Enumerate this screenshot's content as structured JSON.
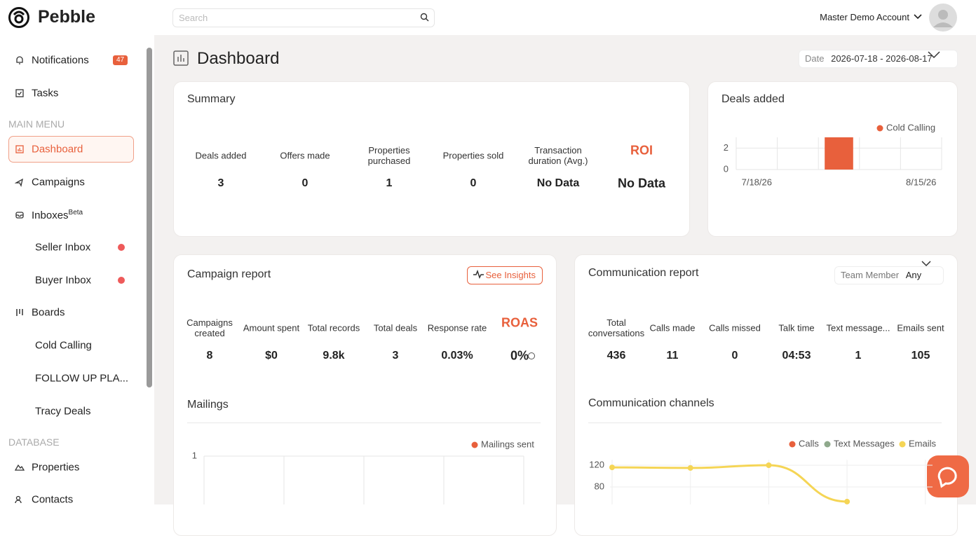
{
  "brand": "Pebble",
  "search_placeholder": "Search",
  "account": "Master Demo Account",
  "sidebar": {
    "notifications": "Notifications",
    "notification_count": 47,
    "tasks": "Tasks",
    "main_menu": "MAIN MENU",
    "dashboard": "Dashboard",
    "campaigns": "Campaigns",
    "inboxes": "Inboxes",
    "beta": "Beta",
    "seller_inbox": "Seller Inbox",
    "buyer_inbox": "Buyer Inbox",
    "boards": "Boards",
    "boards_list": [
      "Cold Calling",
      "FOLLOW UP PLA...",
      "Tracy Deals"
    ],
    "database": "DATABASE",
    "properties": "Properties",
    "contacts": "Contacts"
  },
  "page_title": "Dashboard",
  "date_label": "Date",
  "date_range": "2026-07-18 - 2026-08-17",
  "summary": {
    "title": "Summary",
    "stats": [
      {
        "label": "Deals added",
        "value": 3
      },
      {
        "label": "Offers made",
        "value": 0
      },
      {
        "label": "Properties purchased",
        "value": 1
      },
      {
        "label": "Properties sold",
        "value": 0
      },
      {
        "label": "Transaction duration (Avg.)",
        "value": "No Data"
      }
    ],
    "highlight": {
      "label": "ROI",
      "value": "No Data"
    }
  },
  "deals_chart": {
    "type": "bar",
    "title": "Deals added",
    "categories": [
      "7/18/26",
      null,
      null,
      null,
      "8/15/26"
    ],
    "series": [
      {
        "name": "Cold Calling",
        "color": "#e8603c",
        "values": [
          0,
          0,
          3,
          0,
          0
        ]
      }
    ],
    "ylim": [
      0,
      3
    ],
    "yticks": [
      0,
      2
    ]
  },
  "campaign_report": {
    "title": "Campaign report",
    "button": "See Insights",
    "stats": [
      {
        "label": "Campaigns created",
        "value": 8
      },
      {
        "label": "Amount spent",
        "value": "$0"
      },
      {
        "label": "Total records",
        "value": "9.8k"
      },
      {
        "label": "Total deals",
        "value": 3
      },
      {
        "label": "Response rate",
        "value": "0.03%"
      }
    ],
    "highlight": {
      "label": "ROAS",
      "value": "0%"
    }
  },
  "mailings_chart": {
    "type": "line",
    "title": "Mailings",
    "series": [
      {
        "name": "Mailings sent",
        "color": "#e8603c"
      }
    ],
    "ylim": [
      0,
      1
    ],
    "yticks": [
      1
    ]
  },
  "communication_report": {
    "title": "Communication report",
    "filter_label": "Team Member",
    "filter_value": "Any",
    "stats": [
      {
        "label": "Total conversations",
        "value": 436
      },
      {
        "label": "Calls made",
        "value": 11
      },
      {
        "label": "Calls missed",
        "value": 0
      },
      {
        "label": "Talk time",
        "value": "04:53"
      },
      {
        "label": "Text message...",
        "value": 1
      },
      {
        "label": "Emails sent",
        "value": 105
      }
    ]
  },
  "channels_chart": {
    "type": "line",
    "title": "Communication channels",
    "series": [
      {
        "name": "Calls",
        "color": "#e8603c"
      },
      {
        "name": "Text Messages",
        "color": "#8fa98c"
      },
      {
        "name": "Emails",
        "color": "#f5d555",
        "values": [
          116,
          115,
          120,
          53
        ]
      }
    ],
    "ylim": [
      0,
      130
    ],
    "yticks": [
      120,
      80
    ]
  }
}
